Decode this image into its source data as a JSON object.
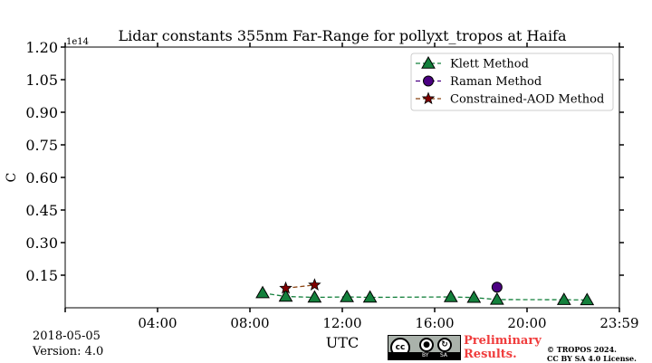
{
  "chart_data": {
    "type": "line",
    "title": "Lidar constants 355nm Far-Range for pollyxt_tropos at Haifa",
    "xlabel": "UTC",
    "ylabel": "C",
    "y_offset_label": "1e14",
    "xlim_hours": [
      0,
      24
    ],
    "ylim": [
      0,
      1.2
    ],
    "y_scale_factor": 100000000000000.0,
    "xticks": [
      {
        "value": 4,
        "label": "04:00"
      },
      {
        "value": 8,
        "label": "08:00"
      },
      {
        "value": 12,
        "label": "12:00"
      },
      {
        "value": 16,
        "label": "16:00"
      },
      {
        "value": 20,
        "label": "20:00"
      },
      {
        "value": 24,
        "label": "23:59"
      }
    ],
    "yticks": [
      "0.15",
      "0.30",
      "0.45",
      "0.60",
      "0.75",
      "0.90",
      "1.05",
      "1.20"
    ],
    "legend_position": "top-right",
    "grid": false,
    "series": [
      {
        "name": "Klett Method",
        "marker": "triangle",
        "color": "#14803c",
        "line_color": "#14803c",
        "points": [
          {
            "x": 8.55,
            "y": 0.068
          },
          {
            "x": 9.55,
            "y": 0.052
          },
          {
            "x": 10.8,
            "y": 0.048
          },
          {
            "x": 12.2,
            "y": 0.05
          },
          {
            "x": 13.2,
            "y": 0.048
          },
          {
            "x": 16.7,
            "y": 0.05
          },
          {
            "x": 17.7,
            "y": 0.047
          },
          {
            "x": 18.7,
            "y": 0.038
          },
          {
            "x": 21.6,
            "y": 0.037
          },
          {
            "x": 22.6,
            "y": 0.036
          }
        ]
      },
      {
        "name": "Raman Method",
        "marker": "circle",
        "color": "#4b0082",
        "line_color": "#4b0082",
        "points": [
          {
            "x": 18.7,
            "y": 0.095
          }
        ]
      },
      {
        "name": "Constrained-AOD Method",
        "marker": "star",
        "color": "#800000",
        "line_color": "#8b4513",
        "points": [
          {
            "x": 9.55,
            "y": 0.09
          },
          {
            "x": 10.8,
            "y": 0.105
          }
        ]
      }
    ]
  },
  "footer": {
    "date": "2018-05-05",
    "version": "Version: 4.0",
    "preliminary_line1": "Preliminary",
    "preliminary_line2": "Results.",
    "copyright_line1": "© TROPOS 2024.",
    "copyright_line2": "CC BY SA 4.0 License.",
    "license_badge": {
      "main": "cc",
      "by": "BY",
      "sa": "SA"
    }
  }
}
